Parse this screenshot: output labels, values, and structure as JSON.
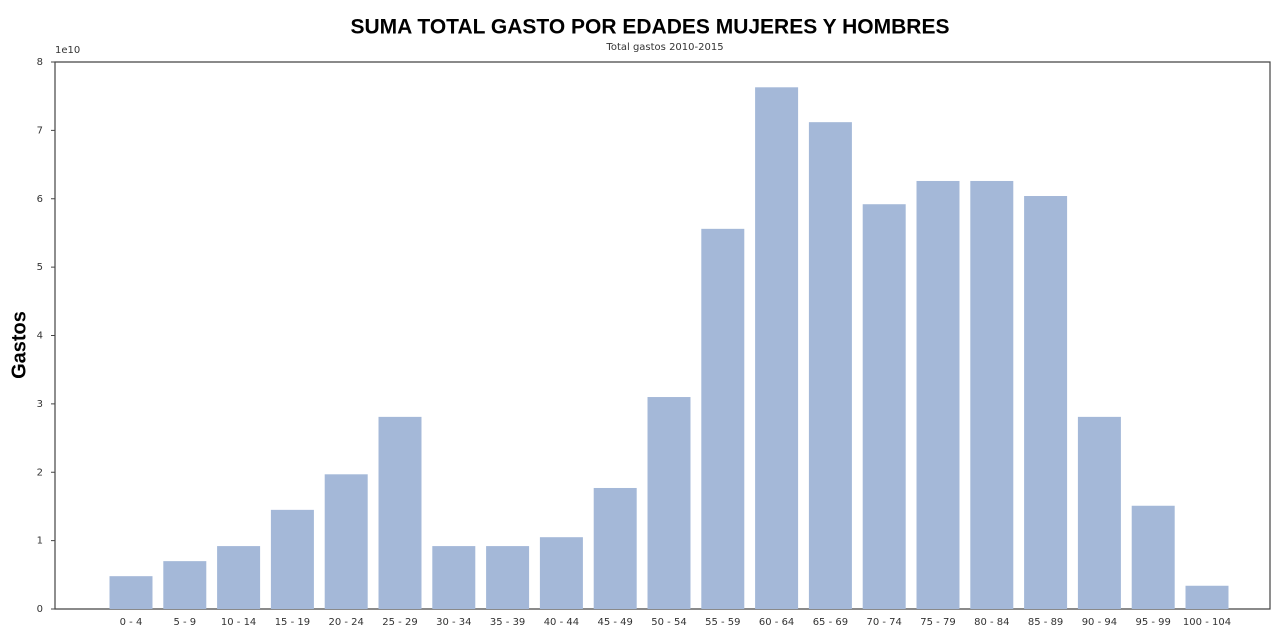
{
  "chart_data": {
    "type": "bar",
    "title": "SUMA TOTAL GASTO POR EDADES MUJERES Y HOMBRES",
    "subtitle": "Total gastos 2010-2015",
    "y_label": "Gastos",
    "y_offset_label": "1e10",
    "categories": [
      "0 - 4",
      "5 - 9",
      "10 - 14",
      "15 - 19",
      "20 - 24",
      "25 - 29",
      "30 - 34",
      "35 - 39",
      "40 - 44",
      "45 - 49",
      "50 - 54",
      "55 - 59",
      "60 - 64",
      "65 - 69",
      "70 - 74",
      "75 - 79",
      "80 - 84",
      "85 - 89",
      "90 - 94",
      "95 - 99",
      "100 - 104"
    ],
    "values": [
      0.48,
      0.7,
      0.92,
      1.45,
      1.97,
      2.81,
      0.92,
      0.92,
      1.05,
      1.77,
      3.1,
      5.56,
      7.63,
      7.12,
      5.92,
      6.26,
      6.26,
      6.04,
      2.81,
      1.51,
      0.34
    ],
    "color": "#a4b8d8",
    "ylim": [
      0,
      8
    ],
    "yticks": [
      0,
      1,
      2,
      3,
      4,
      5,
      6,
      7,
      8
    ],
    "grid": false
  }
}
